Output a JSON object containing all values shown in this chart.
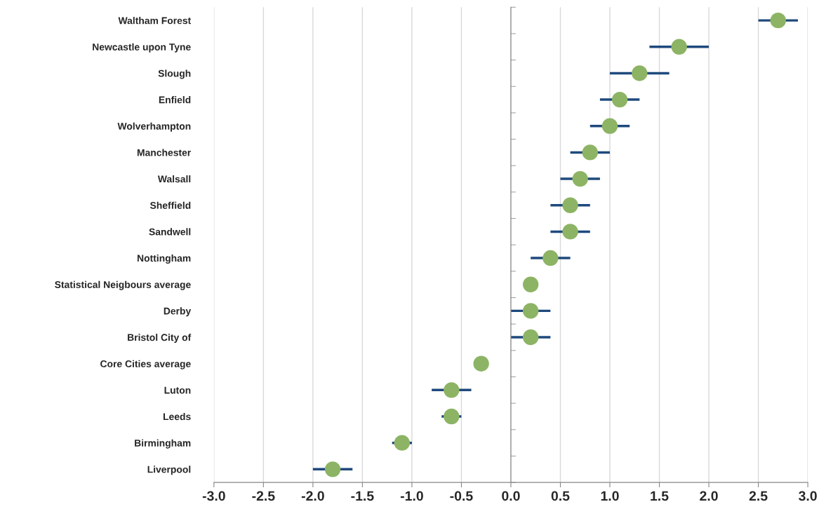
{
  "chart_data": {
    "type": "scatter",
    "orientation": "horizontal",
    "categories": [
      "Waltham Forest",
      "Newcastle upon Tyne",
      "Slough",
      "Enfield",
      "Wolverhampton",
      "Manchester",
      "Walsall",
      "Sheffield",
      "Sandwell",
      "Nottingham",
      "Statistical Neigbours average",
      "Derby",
      "Bristol City of",
      "Core Cities average",
      "Luton",
      "Leeds",
      "Birmingham",
      "Liverpool"
    ],
    "values": [
      2.7,
      1.7,
      1.3,
      1.1,
      1.0,
      0.8,
      0.7,
      0.6,
      0.6,
      0.4,
      0.2,
      0.2,
      0.2,
      -0.3,
      -0.6,
      -0.6,
      -1.1,
      -1.8
    ],
    "errors": [
      [
        2.5,
        2.9
      ],
      [
        1.4,
        2.0
      ],
      [
        1.0,
        1.6
      ],
      [
        0.9,
        1.3
      ],
      [
        0.8,
        1.2
      ],
      [
        0.6,
        1.0
      ],
      [
        0.5,
        0.9
      ],
      [
        0.4,
        0.8
      ],
      [
        0.4,
        0.8
      ],
      [
        0.2,
        0.6
      ],
      null,
      [
        0.0,
        0.4
      ],
      [
        0.0,
        0.4
      ],
      null,
      [
        -0.8,
        -0.4
      ],
      [
        -0.7,
        -0.5
      ],
      [
        -1.2,
        -1.0
      ],
      [
        -2.0,
        -1.6
      ]
    ],
    "color": "#8cb464",
    "xlim": [
      -3.0,
      3.0
    ],
    "xticks": [
      {
        "value": -3,
        "label": "-3.0"
      },
      {
        "value": -2.5,
        "label": "-2.5"
      },
      {
        "value": -2,
        "label": "-2.0"
      },
      {
        "value": -1.5,
        "label": "-1.5"
      },
      {
        "value": -1,
        "label": "-1.0"
      },
      {
        "value": -0.5,
        "label": "-0.5"
      },
      {
        "value": 0,
        "label": "0.0"
      },
      {
        "value": 0.5,
        "label": "0.5"
      },
      {
        "value": 1,
        "label": "1.0"
      },
      {
        "value": 1.5,
        "label": "1.5"
      },
      {
        "value": 2,
        "label": "2.0"
      },
      {
        "value": 2.5,
        "label": "2.5"
      },
      {
        "value": 3,
        "label": "3.0"
      }
    ],
    "grid": "x",
    "marker": "circle",
    "legend": false
  }
}
